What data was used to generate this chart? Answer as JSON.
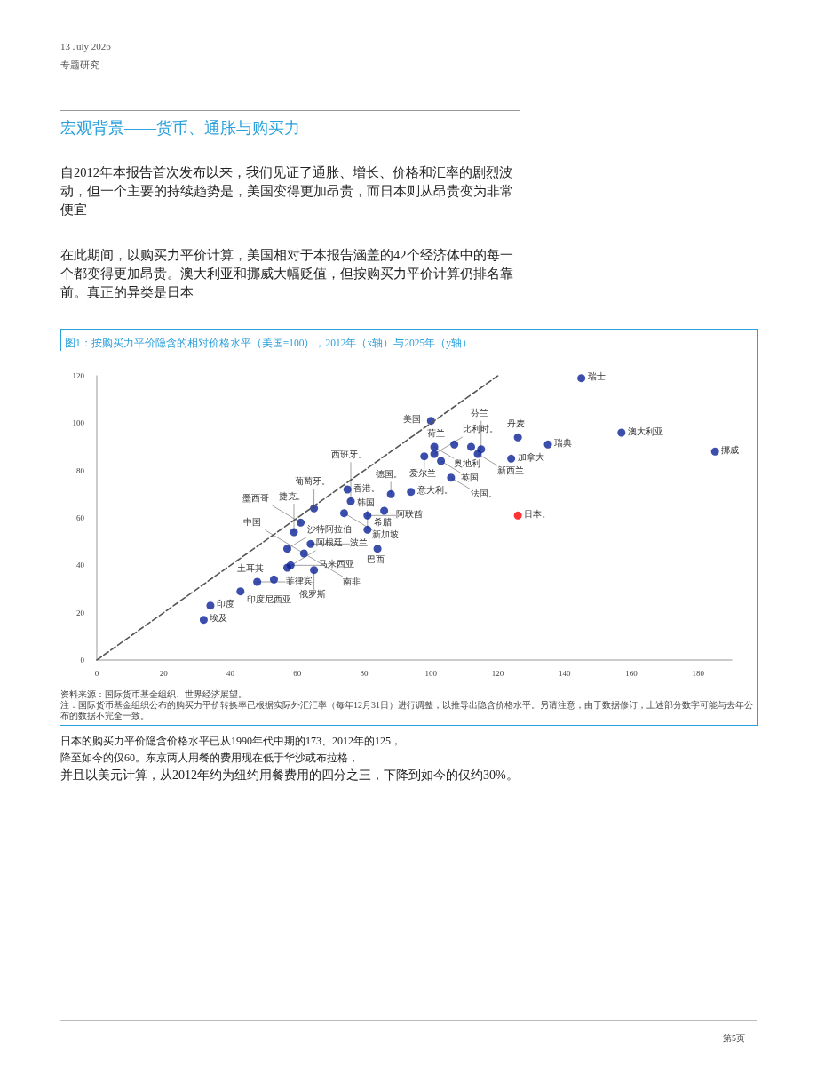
{
  "chart_data": {
    "type": "scatter",
    "title": "图1：按购买力平价隐含的相对价格水平（美国=100），2012年（x轴）与2025年（y轴）",
    "subtitle": "宏观背景——货币、通胀与购买力",
    "xlim": [
      0,
      190
    ],
    "xticks": [
      0,
      20,
      40,
      60,
      80,
      100,
      120,
      140,
      160,
      180
    ],
    "ylim": [
      0,
      120
    ],
    "yticks": [
      0,
      20,
      40,
      60,
      80,
      100,
      120
    ],
    "grid": false,
    "marker": "circle",
    "series": [
      {
        "x": [
          32,
          34,
          43,
          48,
          53,
          57,
          58,
          57,
          62,
          59,
          61,
          64,
          65,
          65,
          74,
          75,
          76,
          81,
          81,
          84,
          86,
          88,
          94,
          98,
          100,
          101,
          101,
          103,
          106,
          107,
          112,
          114,
          115,
          124,
          126,
          126,
          135,
          145,
          157,
          185
        ],
        "values": [
          17,
          23,
          29,
          33,
          34,
          39,
          40,
          47,
          45,
          54,
          58,
          49,
          64,
          38,
          62,
          72,
          67,
          61,
          55,
          47,
          63,
          70,
          71,
          86,
          101,
          90,
          87,
          84,
          77,
          91,
          90,
          87,
          89,
          85,
          61,
          94,
          91,
          119,
          96,
          88
        ],
        "colors": [
          "#0a2296",
          "#0a2296",
          "#0a2296",
          "#0a2296",
          "#0a2296",
          "#0a2296",
          "#0a2296",
          "#0a2296",
          "#0a2296",
          "#0a2296",
          "#0a2296",
          "#0a2296",
          "#0a2296",
          "#0a2296",
          "#0a2296",
          "#0a2296",
          "#0a2296",
          "#0a2296",
          "#0a2296",
          "#0a2296",
          "#0a2296",
          "#0a2296",
          "#0a2296",
          "#0a2296",
          "#0a2296",
          "#0a2296",
          "#0a2296",
          "#0a2296",
          "#0a2296",
          "#0a2296",
          "#0a2296",
          "#0a2296",
          "#0a2296",
          "#0a2296",
          "#ff0000",
          "#0a2296",
          "#0a2296",
          "#0a2296",
          "#0a2296",
          "#0a2296"
        ]
      },
      {
        "type": "line",
        "x": [
          0,
          120
        ],
        "values": [
          0,
          120
        ],
        "color": "#555555",
        "line_style": "dashed",
        "marker": "none"
      }
    ],
    "annotations": [
      "13 July 2026",
      "专题研究",
      "自2012年本报告首次发布以来，我们见证了通胀、增长、价格和汇率的剧烈波动，但一个主要的持续趋势是，美国变得更加昂贵，而日本则从昂贵变为非常便宜",
      "在此期间，以购买力平价计算，美国相对于本报告涵盖的42个经济体中的每一个都变得更加昂贵。澳大利亚和挪威大幅贬值，但按购买力平价计算仍排名靠前。真正的异类是日本",
      "资料来源：国际货币基金组织、世界经济展望。",
      "注：国际货币基金组织公布的购买力平价转换率已根据实际外汇汇率（每年12月31日）进行调整，以推导出隐含价格水平。另请注意，由于数据修订，上述部分数字可能与去年公布的数据不完全一致。",
      "日本的购买力平价隐含价格水平已从1990年代中期的173、2012年的125，",
      "降至如今的仅60。东京两人用餐的费用现在低于华沙或布拉格，",
      "并且以美元计算，从2012年约为纽约用餐费用的四分之三，下降到如今的仅约30%。",
      "第5页",
      {
        "text": "埃及",
        "x": 32,
        "y": 17
      },
      {
        "text": "印度",
        "x": 34,
        "y": 23
      },
      {
        "text": "印度尼西亚",
        "x": 43,
        "y": 29
      },
      {
        "text": "菲律宾",
        "x": 48,
        "y": 33
      },
      {
        "text": "土耳其",
        "x": 53,
        "y": 34
      },
      {
        "text": "阿根廷",
        "x": 57,
        "y": 39
      },
      {
        "text": "马来西亚",
        "x": 58,
        "y": 40
      },
      {
        "text": "沙特阿拉伯",
        "x": 57,
        "y": 47
      },
      {
        "text": "南非",
        "x": 62,
        "y": 45
      },
      {
        "text": "中国",
        "x": 62,
        "y": 45
      },
      {
        "text": "捷克。",
        "x": 59,
        "y": 54
      },
      {
        "text": "墨西哥",
        "x": 61,
        "y": 58
      },
      {
        "text": "波兰",
        "x": 64,
        "y": 49
      },
      {
        "text": "葡萄牙。",
        "x": 65,
        "y": 64
      },
      {
        "text": "俄罗斯",
        "x": 65,
        "y": 38
      },
      {
        "text": "新加坡",
        "x": 74,
        "y": 62
      },
      {
        "text": "香港。",
        "x": 75,
        "y": 72
      },
      {
        "text": "西班牙。",
        "x": 76,
        "y": 67
      },
      {
        "text": "阿联酋",
        "x": 81,
        "y": 61
      },
      {
        "text": "韩国",
        "x": 81,
        "y": 55
      },
      {
        "text": "巴西",
        "x": 84,
        "y": 47
      },
      {
        "text": "希腊",
        "x": 86,
        "y": 63
      },
      {
        "text": "德国。",
        "x": 88,
        "y": 70
      },
      {
        "text": "意大利。",
        "x": 94,
        "y": 71
      },
      {
        "text": "比利时。",
        "x": 101,
        "y": 87
      },
      {
        "text": "爱尔兰",
        "x": 98,
        "y": 86
      },
      {
        "text": "美国",
        "x": 100,
        "y": 101
      },
      {
        "text": "奥地利",
        "x": 101,
        "y": 90
      },
      {
        "text": "英国",
        "x": 103,
        "y": 84
      },
      {
        "text": "法国。",
        "x": 106,
        "y": 77
      },
      {
        "text": "荷兰",
        "x": 107,
        "y": 91
      },
      {
        "text": "新西兰",
        "x": 114,
        "y": 87
      },
      {
        "text": "芬兰",
        "x": 115,
        "y": 89
      },
      {
        "text": "加拿大",
        "x": 124,
        "y": 85
      },
      {
        "text": "日本。",
        "x": 126,
        "y": 61
      },
      {
        "text": "丹麦",
        "x": 126,
        "y": 94
      },
      {
        "text": "瑞典",
        "x": 135,
        "y": 91
      },
      {
        "text": "瑞士",
        "x": 145,
        "y": 119
      },
      {
        "text": "澳大利亚",
        "x": 157,
        "y": 96
      },
      {
        "text": "挪威",
        "x": 185,
        "y": 88
      }
    ]
  }
}
